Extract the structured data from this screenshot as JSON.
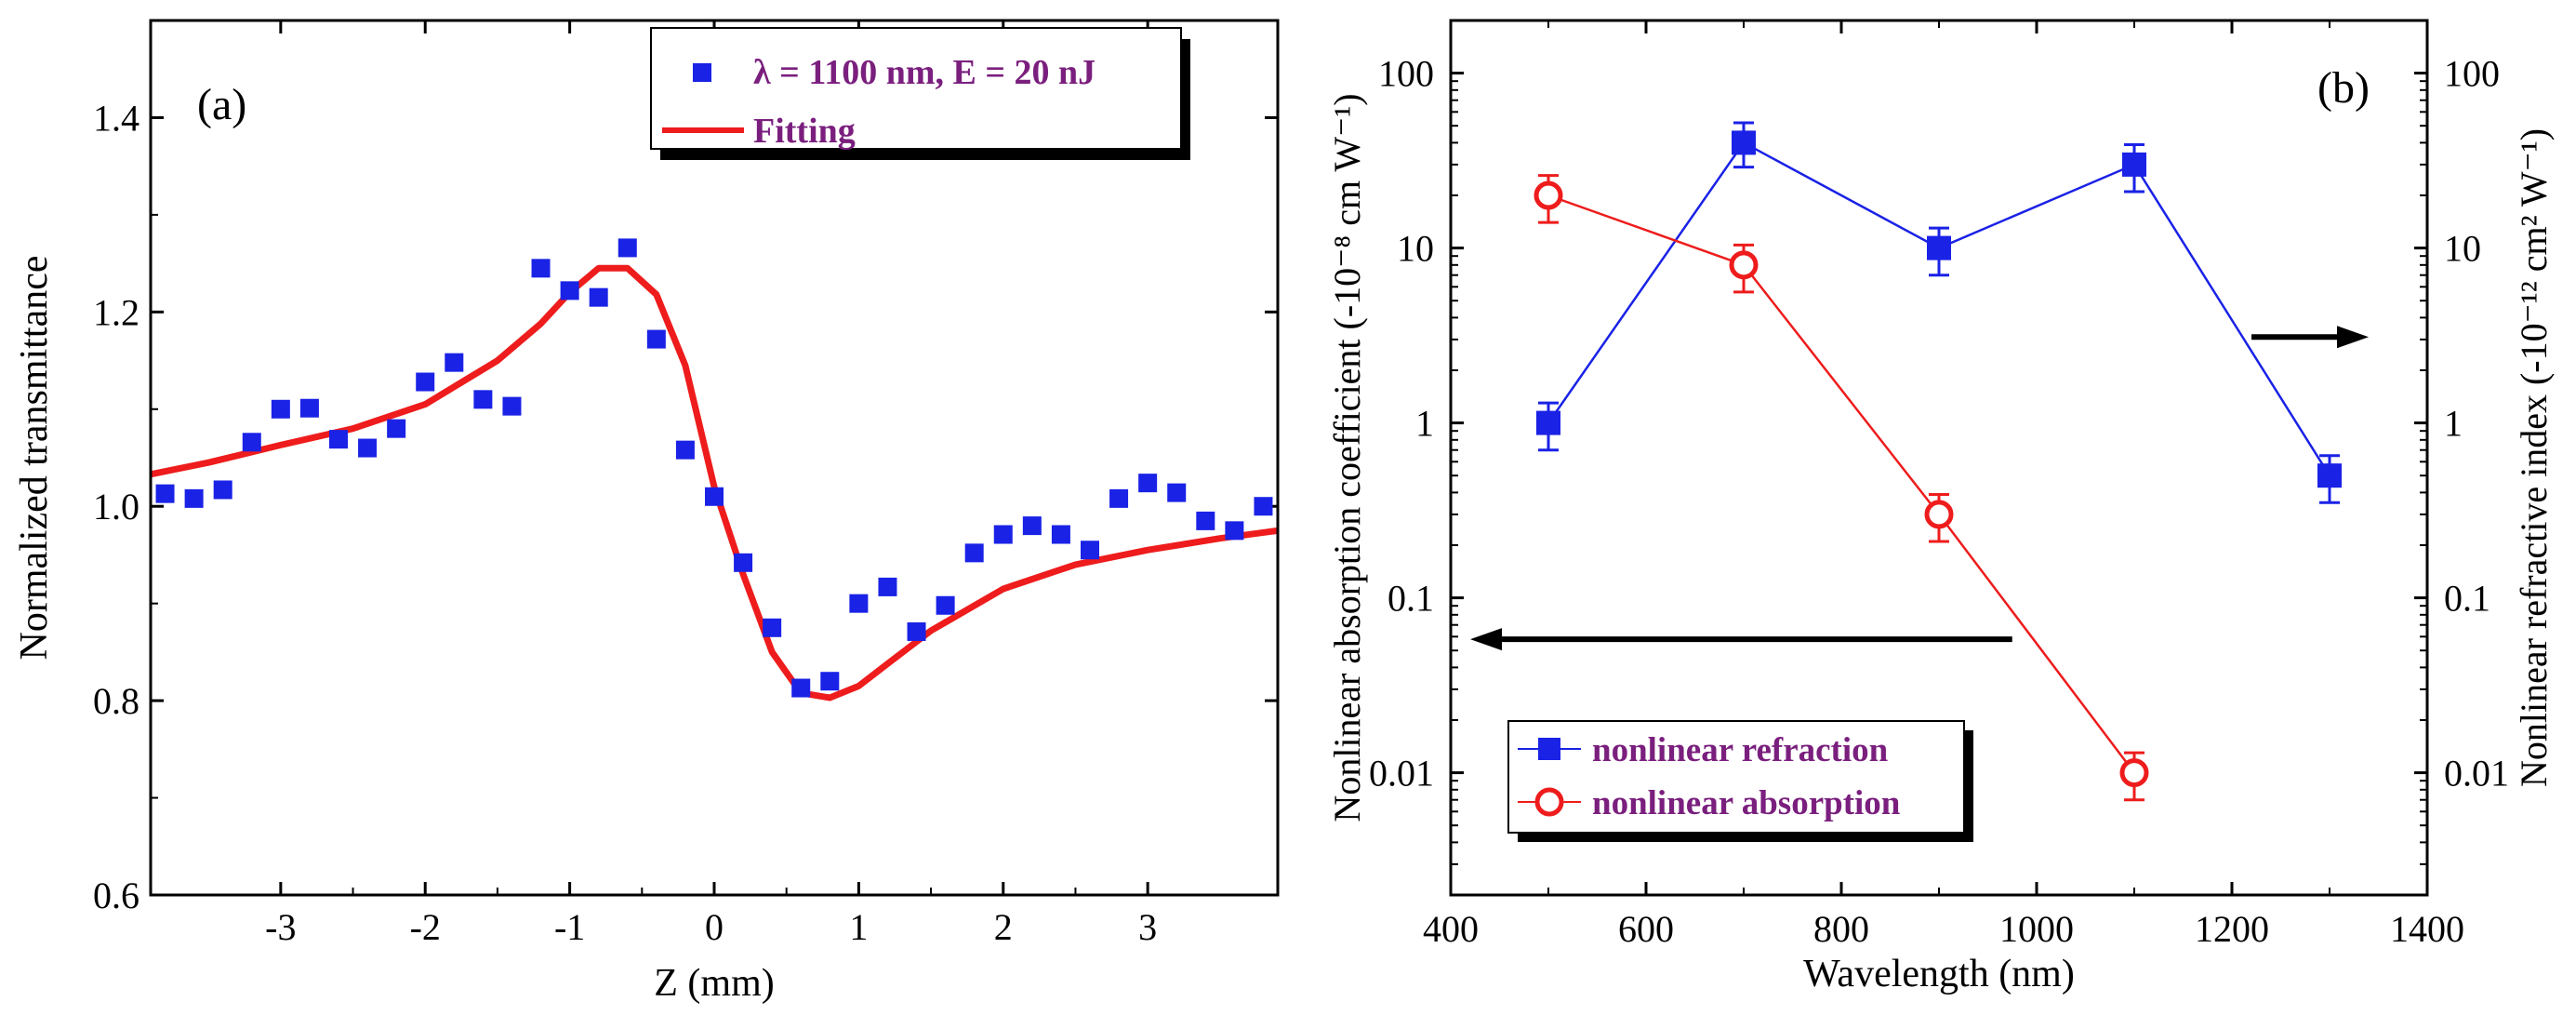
{
  "colors": {
    "data_blue": "#1a22e6",
    "fit_red": "#ee1c1c",
    "legend_purple": "#7a1f7e",
    "axis": "#000000"
  },
  "chart_data": [
    {
      "id": "a",
      "panel_label": "(a)",
      "type": "scatter",
      "xlabel": "Z (mm)",
      "ylabel": "Normalized transmittance",
      "xlim": [
        -3.9,
        3.9
      ],
      "ylim": [
        0.6,
        1.5
      ],
      "xticks": [
        {
          "v": -3,
          "label": "-3"
        },
        {
          "v": -2,
          "label": "-2"
        },
        {
          "v": -1,
          "label": "-1"
        },
        {
          "v": 0,
          "label": "0"
        },
        {
          "v": 1,
          "label": "1"
        },
        {
          "v": 2,
          "label": "2"
        },
        {
          "v": 3,
          "label": "3"
        }
      ],
      "yticks": [
        {
          "v": 0.6,
          "label": "0.6"
        },
        {
          "v": 0.8,
          "label": "0.8"
        },
        {
          "v": 1.0,
          "label": "1.0"
        },
        {
          "v": 1.2,
          "label": "1.2"
        },
        {
          "v": 1.4,
          "label": "1.4"
        }
      ],
      "legend": {
        "position": "top-right",
        "items": [
          {
            "label": "λ = 1100 nm, E = 20 nJ",
            "symbol": "square",
            "color": "#1a22e6"
          },
          {
            "label": "Fitting",
            "symbol": "line",
            "color": "#ee1c1c"
          }
        ]
      },
      "series": [
        {
          "name": "λ = 1100 nm, E = 20 nJ",
          "kind": "markers",
          "color": "#1a22e6",
          "x": [
            -3.8,
            -3.6,
            -3.4,
            -3.2,
            -3.0,
            -2.8,
            -2.6,
            -2.4,
            -2.2,
            -2.0,
            -1.8,
            -1.6,
            -1.4,
            -1.2,
            -1.0,
            -0.8,
            -0.6,
            -0.4,
            -0.2,
            0.0,
            0.2,
            0.4,
            0.6,
            0.8,
            1.0,
            1.2,
            1.4,
            1.6,
            1.8,
            2.0,
            2.2,
            2.4,
            2.6,
            2.8,
            3.0,
            3.2,
            3.4,
            3.6,
            3.8
          ],
          "y": [
            1.013,
            1.008,
            1.017,
            1.066,
            1.1,
            1.101,
            1.069,
            1.06,
            1.08,
            1.128,
            1.148,
            1.11,
            1.103,
            1.245,
            1.222,
            1.215,
            1.266,
            1.172,
            1.058,
            1.01,
            0.942,
            0.875,
            0.813,
            0.82,
            0.9,
            0.917,
            0.871,
            0.898,
            0.952,
            0.971,
            0.98,
            0.971,
            0.955,
            1.008,
            1.024,
            1.014,
            0.985,
            0.975,
            1.0
          ]
        },
        {
          "name": "Fitting",
          "kind": "line",
          "color": "#ee1c1c",
          "x": [
            -3.9,
            -3.5,
            -3.0,
            -2.5,
            -2.0,
            -1.5,
            -1.2,
            -1.0,
            -0.8,
            -0.6,
            -0.4,
            -0.2,
            0.0,
            0.2,
            0.4,
            0.6,
            0.8,
            1.0,
            1.2,
            1.5,
            2.0,
            2.5,
            3.0,
            3.5,
            3.9
          ],
          "y": [
            1.033,
            1.045,
            1.063,
            1.08,
            1.105,
            1.15,
            1.188,
            1.22,
            1.245,
            1.245,
            1.218,
            1.145,
            1.02,
            0.93,
            0.85,
            0.808,
            0.803,
            0.815,
            0.838,
            0.872,
            0.915,
            0.94,
            0.955,
            0.967,
            0.975
          ]
        }
      ]
    },
    {
      "id": "b",
      "panel_label": "(b)",
      "type": "line",
      "xlabel": "Wavelength (nm)",
      "ylabel": "Nonlinear absorption coefficient (-10⁻⁸ cm W⁻¹)",
      "ylabel_right": "Nonlinear refractive index (-10⁻¹² cm² W⁻¹)",
      "xlim": [
        400,
        1400
      ],
      "ylim": [
        0.002,
        200
      ],
      "yscale": "log",
      "xticks": [
        {
          "v": 400,
          "label": "400"
        },
        {
          "v": 600,
          "label": "600"
        },
        {
          "v": 800,
          "label": "800"
        },
        {
          "v": 1000,
          "label": "1000"
        },
        {
          "v": 1200,
          "label": "1200"
        },
        {
          "v": 1400,
          "label": "1400"
        }
      ],
      "yticks": [
        {
          "v": 0.01,
          "label": "0.01"
        },
        {
          "v": 0.1,
          "label": "0.1"
        },
        {
          "v": 1,
          "label": "1"
        },
        {
          "v": 10,
          "label": "10"
        },
        {
          "v": 100,
          "label": "100"
        }
      ],
      "legend": {
        "position": "bottom-left",
        "items": [
          {
            "label": "nonlinear refraction",
            "symbol": "square",
            "color": "#1a22e6"
          },
          {
            "label": "nonlinear absorption",
            "symbol": "circle",
            "color": "#ee1c1c"
          }
        ]
      },
      "arrows": [
        {
          "direction": "left",
          "axis": "left",
          "from": [
            975,
            0.058
          ],
          "to": [
            420,
            0.058
          ]
        },
        {
          "direction": "right",
          "axis": "right",
          "from": [
            1220,
            3.1
          ],
          "to": [
            1340,
            3.1
          ]
        }
      ],
      "series": [
        {
          "name": "nonlinear refraction",
          "axis": "right",
          "marker": "square",
          "color": "#1a22e6",
          "x": [
            500,
            700,
            900,
            1100,
            1300
          ],
          "y": [
            1,
            40,
            10,
            30,
            0.5
          ],
          "err_low": [
            0.7,
            29,
            7,
            21,
            0.35
          ],
          "err_high": [
            1.3,
            52,
            13,
            39,
            0.65
          ]
        },
        {
          "name": "nonlinear absorption",
          "axis": "left",
          "marker": "circle",
          "color": "#ee1c1c",
          "x": [
            500,
            700,
            900,
            1100
          ],
          "y": [
            20,
            8,
            0.3,
            0.01
          ],
          "err_low": [
            14,
            5.6,
            0.21,
            0.007
          ],
          "err_high": [
            26,
            10.4,
            0.39,
            0.013
          ]
        }
      ]
    }
  ]
}
